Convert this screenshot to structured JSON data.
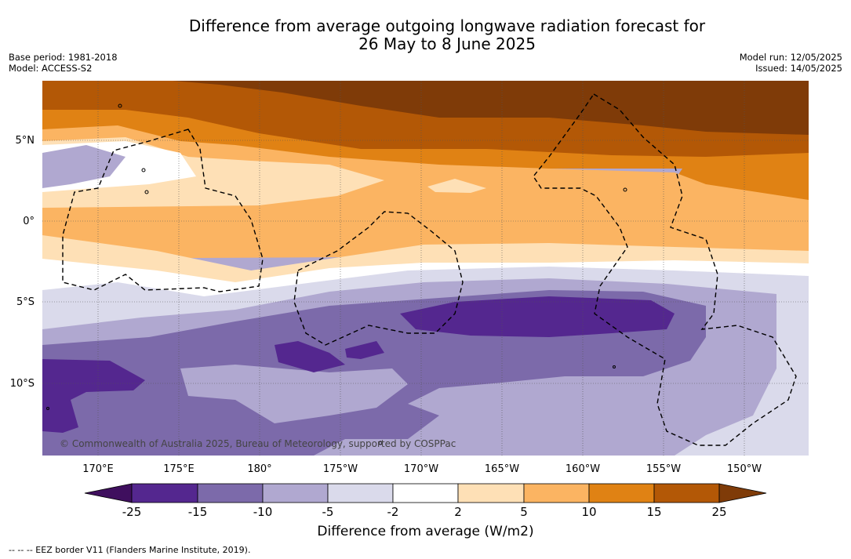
{
  "title": {
    "line1": "Difference from average outgoing longwave radiation forecast for",
    "line2": "26 May to 8 June 2025"
  },
  "meta_left": {
    "base_period": "Base period: 1981-2018",
    "model": "Model: ACCESS-S2"
  },
  "meta_right": {
    "model_run": "Model run: 12/05/2025",
    "issued": "Issued: 14/05/2025"
  },
  "map": {
    "lat_labels": [
      "5°N",
      "0°",
      "5°S",
      "10°S"
    ],
    "lon_labels": [
      "170°E",
      "175°E",
      "180°",
      "175°W",
      "170°W",
      "165°W",
      "160°W",
      "155°W",
      "150°W"
    ],
    "copyright": "© Commonwealth of Australia 2025, Bureau of Meteorology, supported by COSPPac"
  },
  "colorbar": {
    "ticks": [
      "-25",
      "-15",
      "-10",
      "-5",
      "-2",
      "2",
      "5",
      "10",
      "15",
      "25"
    ],
    "colors": [
      "#3f0f5e",
      "#54278f",
      "#7c6aaa",
      "#b0a8d0",
      "#dadaeb",
      "#ffffff",
      "#fee0b6",
      "#fbb462",
      "#e08214",
      "#b35806",
      "#7f3b08"
    ],
    "label": "Difference from average (W/m2)"
  },
  "footnote": "--  --  -- EEZ border V11 (Flanders Marine Institute, 2019)."
}
